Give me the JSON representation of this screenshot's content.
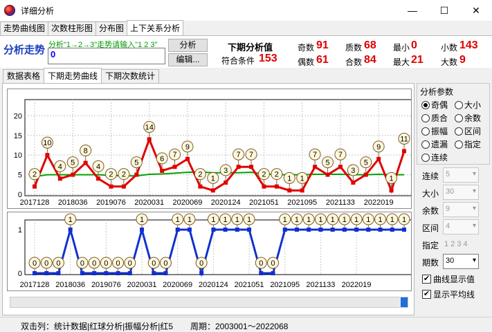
{
  "window": {
    "title": "详细分析",
    "minimize": "—",
    "maximize": "☐",
    "close": "✕"
  },
  "main_tabs": [
    "走势曲线图",
    "次数柱形图",
    "分布图",
    "上下关系分析"
  ],
  "top": {
    "title": "分析走势",
    "hint": "分析\"1→2→3\"走势请输入\"1 2 3\"",
    "input_value": "0",
    "analyze_btn": "分析",
    "edit_btn": "编辑...",
    "next_label": "下期分析值",
    "match_label": "符合条件",
    "match_value": "153",
    "stats": [
      {
        "label": "奇数",
        "value": "91"
      },
      {
        "label": "偶数",
        "value": "61"
      },
      {
        "label": "质数",
        "value": "68"
      },
      {
        "label": "合数",
        "value": "84"
      },
      {
        "label": "最小",
        "value": "0"
      },
      {
        "label": "最大",
        "value": "21"
      },
      {
        "label": "小数",
        "value": "143"
      },
      {
        "label": "大数",
        "value": "9"
      }
    ]
  },
  "sub_tabs": [
    "数据表格",
    "下期走势曲线",
    "下期次数统计"
  ],
  "chart_data": [
    {
      "type": "line",
      "series": [
        {
          "values": [
            2,
            10,
            4,
            5,
            8,
            4,
            2,
            2,
            5,
            14,
            6,
            7,
            9,
            2,
            1,
            3,
            7,
            7,
            2,
            2,
            1,
            1,
            7,
            5,
            7,
            3,
            5,
            9,
            1,
            11
          ]
        },
        {
          "values": [
            4.5,
            5,
            5,
            5,
            5,
            5,
            4.8,
            4.7,
            4.7,
            5.1,
            5.2,
            5.4,
            5.6,
            5.7,
            5.5,
            5.5,
            5.5,
            5.6,
            5.2,
            5,
            5,
            5,
            5.1,
            5.1,
            5.1,
            5,
            5,
            5.1,
            5,
            5
          ]
        }
      ],
      "series_colors": [
        "#e00000",
        "#00a000"
      ],
      "y_ticks": [
        "0",
        "5",
        "10",
        "15",
        "20"
      ],
      "ylim": [
        0,
        22
      ],
      "x_labels": [
        "2017128",
        "2018036",
        "2019076",
        "2020031",
        "2020069",
        "2020124",
        "2021051",
        "2021095",
        "2021133",
        "2022019"
      ],
      "x_label_index": [
        0,
        3,
        6,
        9,
        12,
        15,
        18,
        21,
        24,
        27
      ]
    },
    {
      "type": "line",
      "series": [
        {
          "values": [
            0,
            0,
            0,
            1,
            0,
            0,
            0,
            0,
            0,
            1,
            0,
            0,
            1,
            1,
            0,
            1,
            1,
            1,
            1,
            0,
            0,
            1,
            1,
            1,
            1,
            1,
            1,
            1,
            1,
            1,
            1,
            1
          ]
        }
      ],
      "series_colors": [
        "#1030d0"
      ],
      "y_ticks": [
        "0",
        "1"
      ],
      "ylim": [
        0,
        1
      ],
      "x_labels": [
        "2017128",
        "2018036",
        "2019076",
        "2020031",
        "2020069",
        "2020124",
        "2021051",
        "2021095",
        "2021133",
        "2022019"
      ],
      "x_label_index": [
        0,
        3,
        6,
        9,
        12,
        15,
        18,
        21,
        24,
        27
      ]
    }
  ],
  "params": {
    "group_title": "分析参数",
    "radios": [
      {
        "label": "奇偶",
        "checked": true
      },
      {
        "label": "大小",
        "checked": false
      },
      {
        "label": "质合",
        "checked": false
      },
      {
        "label": "余数",
        "checked": false
      },
      {
        "label": "振幅",
        "checked": false
      },
      {
        "label": "区间",
        "checked": false
      },
      {
        "label": "遗漏",
        "checked": false
      },
      {
        "label": "指定",
        "checked": false
      },
      {
        "label": "连续",
        "checked": false
      }
    ],
    "lianxu_label": "连续",
    "lianxu_value": "5",
    "daxiao_label": "大小",
    "daxiao_value": "30",
    "yushu_label": "余数",
    "yushu_value": "9",
    "qujian_label": "区间",
    "qujian_value": "4",
    "zhiding_label": "指定",
    "zhiding_value": "1 2 3 4",
    "qishu_label": "期数",
    "qishu_value": "30",
    "cb1_label": "曲线显示值",
    "cb2_label": "显示平均线"
  },
  "status": {
    "dblclick": "双击列：统计数据|红球分析|振幅分析|红5",
    "period": "周期：2003001～2022068"
  }
}
